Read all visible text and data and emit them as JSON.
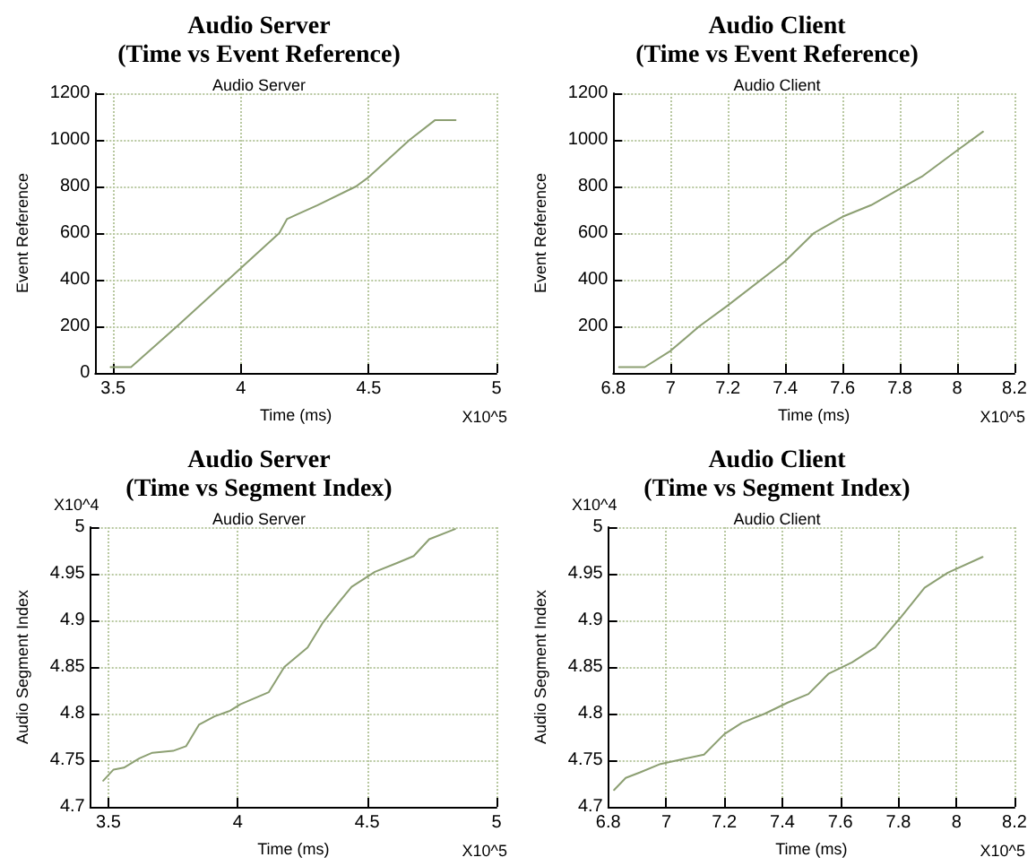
{
  "chart_data": [
    {
      "type": "line",
      "title": "Audio Server\n(Time vs Event Reference)",
      "subtitle": "Audio Server",
      "xlabel": "Time (ms)",
      "ylabel": "Event Reference",
      "annotations": [
        "X10^5"
      ],
      "grid": true,
      "marker": "none",
      "line_style": "solid",
      "xlim": [
        3.43,
        5
      ],
      "xticks": [
        3.5,
        4,
        4.5,
        5
      ],
      "ylim": [
        0,
        1200
      ],
      "yticks": [
        0,
        200,
        400,
        600,
        800,
        1000,
        1200
      ],
      "series": [
        {
          "color": "#8c9f72",
          "x": [
            3.49,
            3.57,
            3.75,
            3.95,
            4.0,
            4.15,
            4.18,
            4.22,
            4.3,
            4.45,
            4.5,
            4.66,
            4.76,
            4.84
          ],
          "values": [
            25,
            25,
            200,
            400,
            450,
            600,
            660,
            680,
            720,
            800,
            840,
            1000,
            1085,
            1085
          ]
        }
      ]
    },
    {
      "type": "line",
      "title": "Audio Client\n(Time vs Event Reference)",
      "subtitle": "Audio Client",
      "xlabel": "Time (ms)",
      "ylabel": "Event Reference",
      "annotations": [
        "X10^5"
      ],
      "grid": true,
      "marker": "none",
      "line_style": "solid",
      "xlim": [
        6.8,
        8.2
      ],
      "xticks": [
        6.8,
        7,
        7.2,
        7.4,
        7.6,
        7.8,
        8,
        8.2
      ],
      "ylim": [
        0,
        1200
      ],
      "yticks": [
        {
          "value": 0,
          "label": null
        },
        200,
        400,
        600,
        800,
        1000,
        1200
      ],
      "series": [
        {
          "color": "#8c9f72",
          "x": [
            6.82,
            6.91,
            7.0,
            7.1,
            7.2,
            7.4,
            7.5,
            7.6,
            7.7,
            7.8,
            7.88,
            8.0,
            8.09
          ],
          "values": [
            25,
            25,
            95,
            200,
            290,
            480,
            600,
            670,
            720,
            790,
            845,
            955,
            1035
          ]
        }
      ]
    },
    {
      "type": "line",
      "title": "Audio Server\n(Time vs Segment Index)",
      "subtitle": "Audio Server",
      "xlabel": "Time (ms)",
      "ylabel": "Audio Segment Index",
      "annotations": [
        "X10^5",
        "X10^4"
      ],
      "grid": true,
      "marker": "none",
      "line_style": "solid",
      "xlim": [
        3.43,
        5
      ],
      "xticks": [
        3.5,
        4,
        4.5,
        5
      ],
      "ylim": [
        4.7,
        5
      ],
      "yticks": [
        4.7,
        4.75,
        4.8,
        4.85,
        4.9,
        4.95,
        5
      ],
      "series": [
        {
          "color": "#8c9f72",
          "x": [
            3.48,
            3.52,
            3.56,
            3.62,
            3.67,
            3.75,
            3.8,
            3.85,
            3.91,
            3.97,
            4.01,
            4.12,
            4.18,
            4.27,
            4.33,
            4.39,
            4.44,
            4.53,
            4.62,
            4.68,
            4.74,
            4.84
          ],
          "values": [
            4.728,
            4.74,
            4.742,
            4.752,
            4.758,
            4.76,
            4.765,
            4.788,
            4.797,
            4.803,
            4.81,
            4.823,
            4.85,
            4.871,
            4.898,
            4.919,
            4.936,
            4.952,
            4.962,
            4.969,
            4.987,
            4.998
          ]
        }
      ]
    },
    {
      "type": "line",
      "title": "Audio Client\n(Time vs Segment Index)",
      "subtitle": "Audio Client",
      "xlabel": "Time (ms)",
      "ylabel": "Audio Segment Index",
      "annotations": [
        "X10^5",
        "X10^4"
      ],
      "grid": true,
      "marker": "none",
      "line_style": "solid",
      "xlim": [
        6.8,
        8.2
      ],
      "xticks": [
        6.8,
        7,
        7.2,
        7.4,
        7.6,
        7.8,
        8,
        8.2
      ],
      "ylim": [
        4.7,
        5
      ],
      "yticks": [
        4.7,
        4.75,
        4.8,
        4.85,
        4.9,
        4.95,
        5
      ],
      "series": [
        {
          "color": "#8c9f72",
          "x": [
            6.82,
            6.86,
            6.91,
            6.98,
            7.04,
            7.13,
            7.2,
            7.26,
            7.34,
            7.42,
            7.49,
            7.56,
            7.64,
            7.72,
            7.81,
            7.89,
            7.97,
            8.09
          ],
          "values": [
            4.718,
            4.731,
            4.737,
            4.746,
            4.75,
            4.756,
            4.778,
            4.79,
            4.8,
            4.812,
            4.821,
            4.843,
            4.855,
            4.871,
            4.904,
            4.935,
            4.951,
            4.968
          ]
        }
      ]
    }
  ]
}
